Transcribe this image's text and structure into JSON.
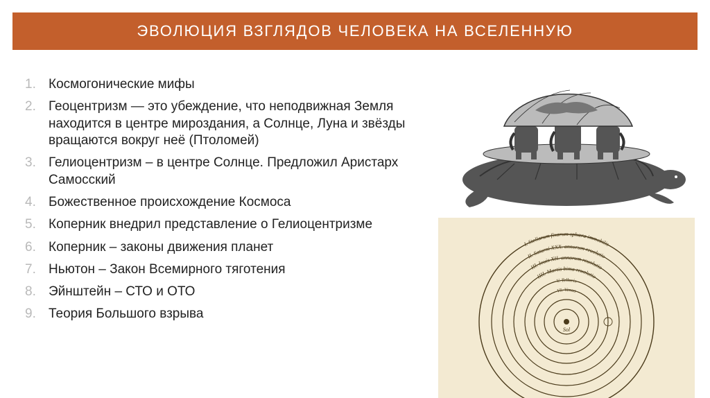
{
  "title": {
    "text": "ЭВОЛЮЦИЯ ВЗГЛЯДОВ ЧЕЛОВЕКА НА ВСЕЛЕННУЮ",
    "background_color": "#c35f2c",
    "text_color": "#ffffff",
    "fontsize_pt": 22
  },
  "list": {
    "fontsize_pt": 19,
    "line_height": 1.28,
    "text_color": "#222222",
    "number_color": "#b9b9b9",
    "items": [
      "Космогонические мифы",
      "Геоцентризм — это убеждение, что неподвижная Земля находится в центре мироздания, а Солнце, Луна и звёзды вращаются вокруг неё (Птоломей)",
      "Гелиоцентризм – в центре Солнце. Предложил Аристарх Самосский",
      "Божественное происхождение Космоса",
      "Коперник внедрил представление о Гелиоцентризме",
      "Коперник – законы движения планет",
      "Ньютон – Закон Всемирного тяготения",
      "Эйнштейн – СТО и ОТО",
      "Теория Большого взрыва"
    ]
  },
  "turtle_illustration": {
    "description": "world-turtle-elephants-engraving",
    "stroke_color": "#333333",
    "fill_dark": "#555555",
    "fill_light": "#bbbbbb",
    "background": "#ffffff"
  },
  "copernicus_diagram": {
    "description": "copernican-heliocentric-rings-manuscript",
    "background_color": "#f3ead2",
    "ring_color": "#4a3a1a",
    "text_color": "#4a3a1a",
    "center_label": "Sol",
    "ring_radii": [
      18,
      32,
      46,
      60,
      76,
      92,
      108,
      126
    ],
    "ring_labels_top": [
      "",
      "VI. Venus",
      "V. Telluris",
      "IIII. Martis bima reuolutio",
      "III. Iouis XII. annorum reuolutio",
      "II. Saturni XXX. annorum reuolutio",
      "I. Stellarum fixarum sphæra immobilis"
    ],
    "label_fontsize_pt": 8
  }
}
